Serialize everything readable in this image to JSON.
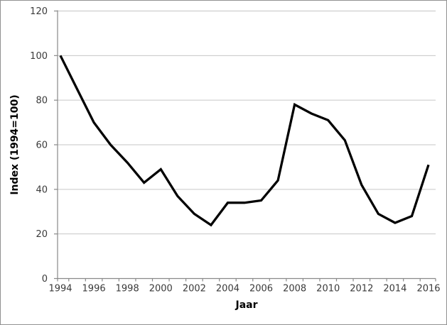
{
  "chart_data": {
    "type": "line",
    "title": "",
    "xlabel": "Jaar",
    "ylabel": "Index (1994=100)",
    "x": [
      1994,
      1995,
      1996,
      1997,
      1998,
      1999,
      2000,
      2001,
      2002,
      2003,
      2004,
      2005,
      2006,
      2007,
      2008,
      2009,
      2010,
      2011,
      2012,
      2013,
      2014,
      2015,
      2016
    ],
    "series": [
      {
        "name": "Index (1994=100)",
        "color": "#000000",
        "values": [
          100,
          85,
          70,
          60,
          52,
          43,
          49,
          37,
          29,
          24,
          34,
          34,
          35,
          44,
          78,
          74,
          71,
          62,
          42,
          29,
          25,
          28,
          51
        ]
      }
    ],
    "ylim": [
      0,
      120
    ],
    "ytick_interval": 20,
    "ytick_labels": [
      "0",
      "20",
      "40",
      "60",
      "80",
      "100",
      "120"
    ],
    "xtick_labels": [
      "1994",
      "1996",
      "1998",
      "2000",
      "2002",
      "2004",
      "2006",
      "2008",
      "2010",
      "2012",
      "2014",
      "2016"
    ],
    "grid": "horizontal",
    "legend": "none"
  },
  "colors": {
    "series_line": "#000000",
    "gridline": "#c6c6c6",
    "axis_line": "#898989",
    "tick_label": "#3a3a3a",
    "frame_border": "#919191",
    "background": "#ffffff"
  }
}
